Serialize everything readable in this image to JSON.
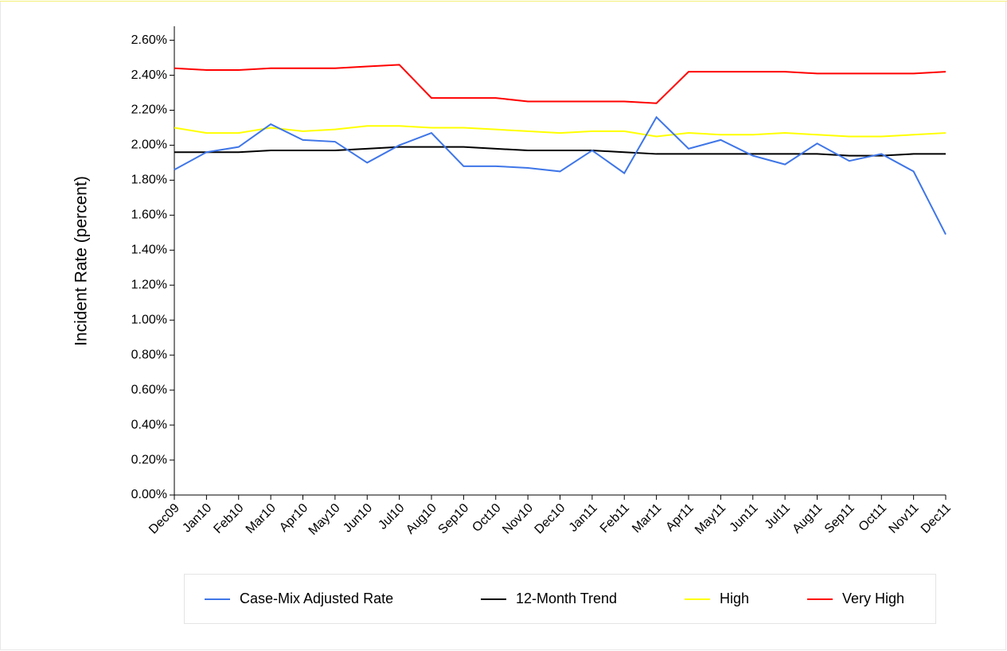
{
  "chart_data": {
    "type": "line",
    "y_label": "Incident Rate (percent)",
    "categories": [
      "Dec09",
      "Jan10",
      "Feb10",
      "Mar10",
      "Apr10",
      "May10",
      "Jun10",
      "Jul10",
      "Aug10",
      "Sep10",
      "Oct10",
      "Nov10",
      "Dec10",
      "Jan11",
      "Feb11",
      "Mar11",
      "Apr11",
      "May11",
      "Jun11",
      "Jul11",
      "Aug11",
      "Sep11",
      "Oct11",
      "Nov11",
      "Dec11"
    ],
    "series": [
      {
        "name": "Case-Mix Adjusted Rate",
        "color": "#3f76e8",
        "values": [
          1.86,
          1.96,
          1.99,
          2.12,
          2.03,
          2.02,
          1.9,
          2.0,
          2.07,
          1.88,
          1.88,
          1.87,
          1.85,
          1.97,
          1.84,
          2.16,
          1.98,
          2.03,
          1.94,
          1.89,
          2.01,
          1.91,
          1.95,
          1.85,
          1.49
        ]
      },
      {
        "name": "12-Month Trend",
        "color": "#000000",
        "values": [
          1.96,
          1.96,
          1.96,
          1.97,
          1.97,
          1.97,
          1.98,
          1.99,
          1.99,
          1.99,
          1.98,
          1.97,
          1.97,
          1.97,
          1.96,
          1.95,
          1.95,
          1.95,
          1.95,
          1.95,
          1.95,
          1.94,
          1.94,
          1.95,
          1.95
        ]
      },
      {
        "name": "High",
        "color": "#ffff00",
        "values": [
          2.1,
          2.07,
          2.07,
          2.1,
          2.08,
          2.09,
          2.11,
          2.11,
          2.1,
          2.1,
          2.09,
          2.08,
          2.07,
          2.08,
          2.08,
          2.05,
          2.07,
          2.06,
          2.06,
          2.07,
          2.06,
          2.05,
          2.05,
          2.06,
          2.07
        ]
      },
      {
        "name": "Very High",
        "color": "#ff0000",
        "values": [
          2.44,
          2.43,
          2.43,
          2.44,
          2.44,
          2.44,
          2.45,
          2.46,
          2.27,
          2.27,
          2.27,
          2.25,
          2.25,
          2.25,
          2.25,
          2.24,
          2.42,
          2.42,
          2.42,
          2.42,
          2.41,
          2.41,
          2.41,
          2.41,
          2.42
        ]
      }
    ],
    "ylim": [
      0,
      2.68
    ],
    "yticks": [
      {
        "value": 0,
        "label": "0.00%"
      },
      {
        "value": 0.2,
        "label": "0.20%"
      },
      {
        "value": 0.4,
        "label": "0.40%"
      },
      {
        "value": 0.6,
        "label": "0.60%"
      },
      {
        "value": 0.8,
        "label": "0.80%"
      },
      {
        "value": 1.0,
        "label": "1.00%"
      },
      {
        "value": 1.2,
        "label": "1.20%"
      },
      {
        "value": 1.4,
        "label": "1.40%"
      },
      {
        "value": 1.6,
        "label": "1.60%"
      },
      {
        "value": 1.8,
        "label": "1.80%"
      },
      {
        "value": 2.0,
        "label": "2.00%"
      },
      {
        "value": 2.2,
        "label": "2.20%"
      },
      {
        "value": 2.4,
        "label": "2.40%"
      },
      {
        "value": 2.6,
        "label": "2.60%"
      }
    ],
    "legend": "bottom"
  }
}
